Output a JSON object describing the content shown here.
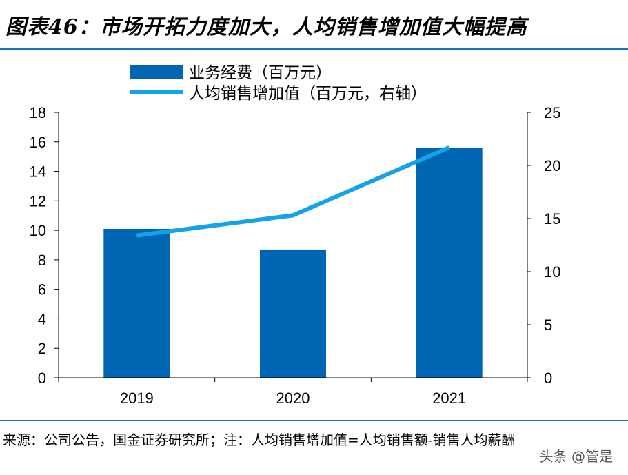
{
  "header": {
    "title": "图表46：市场开拓力度加大，人均销售增加值大幅提高"
  },
  "chart_data": {
    "type": "bar",
    "categories": [
      "2019",
      "2020",
      "2021"
    ],
    "series": [
      {
        "name": "业务经费（百万元）",
        "type": "bar",
        "axis": "left",
        "values": [
          10.1,
          8.7,
          15.6
        ]
      },
      {
        "name": "人均销售增加值（百万元，右轴）",
        "type": "line",
        "axis": "right",
        "values": [
          13.4,
          15.3,
          21.7
        ]
      }
    ],
    "ylim": [
      0,
      18
    ],
    "yticks": [
      0,
      2,
      4,
      6,
      8,
      10,
      12,
      14,
      16,
      18
    ],
    "y2lim": [
      0,
      25
    ],
    "y2ticks": [
      0,
      5,
      10,
      15,
      20,
      25
    ],
    "legend_position": "top-left",
    "grid": false,
    "colors": {
      "bar": "#0066b3",
      "line": "#12a3e8"
    }
  },
  "footer": {
    "source": "来源：公司公告，国金证券研究所；注：人均销售增加值=人均销售额-销售人均薪酬",
    "watermark": "头条 @管是"
  }
}
